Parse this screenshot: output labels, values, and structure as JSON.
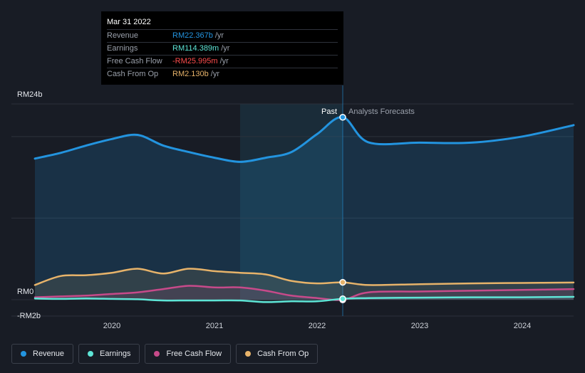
{
  "tooltip": {
    "date": "Mar 31 2022",
    "rows": [
      {
        "label": "Revenue",
        "value": "RM22.367b",
        "unit": "/yr"
      },
      {
        "label": "Earnings",
        "value": "RM114.389m",
        "unit": "/yr"
      },
      {
        "label": "Free Cash Flow",
        "value": "-RM25.995m",
        "unit": "/yr"
      },
      {
        "label": "Cash From Op",
        "value": "RM2.130b",
        "unit": "/yr"
      }
    ]
  },
  "legend": [
    {
      "label": "Revenue"
    },
    {
      "label": "Earnings"
    },
    {
      "label": "Free Cash Flow"
    },
    {
      "label": "Cash From Op"
    }
  ],
  "colors": {
    "revenue": "#2394df",
    "earnings": "#5ee5d6",
    "fcf": "#c74a8a",
    "cfo": "#e7b36a",
    "negative": "#ff4d4d",
    "background": "#181c25"
  },
  "chart_data": {
    "type": "line",
    "y_tick_labels": [
      "RM24b",
      "RM0",
      "-RM2b"
    ],
    "ylim": [
      -2,
      24
    ],
    "x_tick_labels": [
      "2020",
      "2021",
      "2022",
      "2023",
      "2024"
    ],
    "past_label": "Past",
    "forecast_label": "Analysts Forecasts",
    "highlight_x": 2022.25,
    "series": [
      {
        "name": "Revenue",
        "x": [
          2019.25,
          2019.5,
          2019.75,
          2020.0,
          2020.25,
          2020.5,
          2020.75,
          2021.0,
          2021.25,
          2021.5,
          2021.75,
          2022.0,
          2022.25,
          2022.5,
          2023.0,
          2023.5,
          2024.0,
          2024.5
        ],
        "values": [
          17.3,
          18.0,
          18.9,
          19.7,
          20.2,
          18.9,
          18.1,
          17.4,
          16.9,
          17.4,
          18.1,
          20.3,
          22.367,
          19.3,
          19.25,
          19.25,
          20.0,
          21.4
        ]
      },
      {
        "name": "Earnings",
        "x": [
          2019.25,
          2019.5,
          2019.75,
          2020.0,
          2020.25,
          2020.5,
          2020.75,
          2021.0,
          2021.25,
          2021.5,
          2021.75,
          2022.0,
          2022.25,
          2022.5,
          2023.0,
          2023.5,
          2024.0,
          2024.5
        ],
        "values": [
          0.15,
          0.1,
          0.15,
          0.1,
          0.05,
          -0.1,
          -0.1,
          -0.1,
          -0.1,
          -0.3,
          -0.2,
          -0.2,
          0.114389,
          0.2,
          0.25,
          0.3,
          0.3,
          0.35
        ]
      },
      {
        "name": "Free Cash Flow",
        "x": [
          2019.25,
          2019.5,
          2019.75,
          2020.0,
          2020.25,
          2020.5,
          2020.75,
          2021.0,
          2021.25,
          2021.5,
          2021.75,
          2022.0,
          2022.25,
          2022.5,
          2023.0,
          2023.5,
          2024.0,
          2024.5
        ],
        "values": [
          0.3,
          0.4,
          0.5,
          0.7,
          0.9,
          1.3,
          1.7,
          1.5,
          1.5,
          1.1,
          0.5,
          0.2,
          -0.025995,
          0.9,
          1.0,
          1.1,
          1.2,
          1.3
        ]
      },
      {
        "name": "Cash From Op",
        "x": [
          2019.25,
          2019.5,
          2019.75,
          2020.0,
          2020.25,
          2020.5,
          2020.75,
          2021.0,
          2021.25,
          2021.5,
          2021.75,
          2022.0,
          2022.25,
          2022.5,
          2023.0,
          2023.5,
          2024.0,
          2024.5
        ],
        "values": [
          1.8,
          2.9,
          3.0,
          3.3,
          3.8,
          3.2,
          3.8,
          3.5,
          3.3,
          3.1,
          2.3,
          2.0,
          2.13,
          1.8,
          1.9,
          2.0,
          2.05,
          2.1
        ]
      }
    ]
  }
}
